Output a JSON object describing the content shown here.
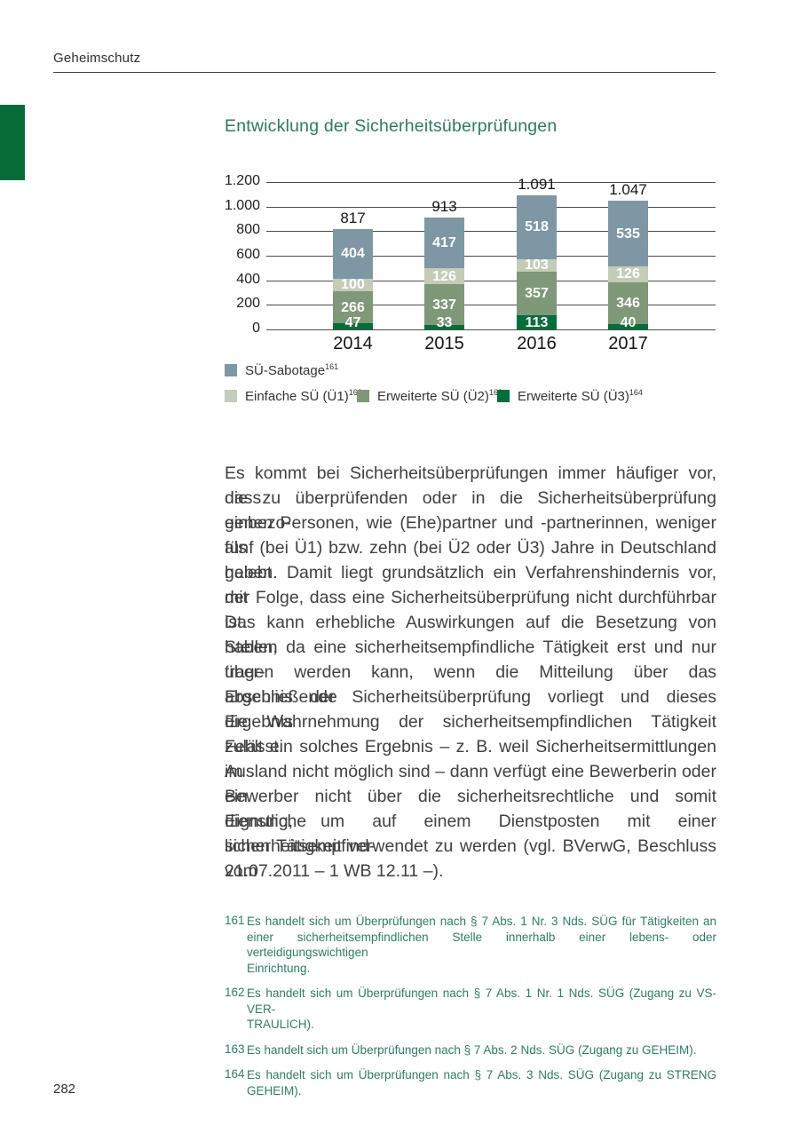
{
  "page": {
    "header": "Geheimschutz",
    "page_number": "282"
  },
  "colors": {
    "margin_block_green": "#056c38",
    "title_green": "#2c7a62",
    "footnote_green": "#2e7d64",
    "bar_blue_gray": "#7e97a5",
    "bar_light_sage": "#c3ccb6",
    "bar_medium_green": "#7e9878",
    "bar_dark_green": "#006f39"
  },
  "chart_data": {
    "type": "bar",
    "stacked": true,
    "title": "Entwicklung der Sicherheitsüberprüfungen",
    "categories": [
      "2014",
      "2015",
      "2016",
      "2017"
    ],
    "series": [
      {
        "name": "SÜ-Sabotage",
        "footnote_ref": "161",
        "color": "#7e97a5",
        "values": [
          404,
          417,
          518,
          535
        ]
      },
      {
        "name": "Einfache SÜ (Ü1)",
        "footnote_ref": "162",
        "color": "#c3ccb6",
        "values": [
          100,
          126,
          103,
          126
        ]
      },
      {
        "name": "Erweiterte SÜ (Ü2)",
        "footnote_ref": "163",
        "color": "#7e9878",
        "values": [
          266,
          337,
          357,
          346
        ]
      },
      {
        "name": "Erweiterte SÜ (Ü3)",
        "footnote_ref": "164",
        "color": "#006f39",
        "values": [
          47,
          33,
          113,
          40
        ]
      }
    ],
    "totals_labels": [
      "817",
      "913",
      "1.091",
      "1.047"
    ],
    "y_ticks": [
      "1.200",
      "1.000",
      "800",
      "600",
      "400",
      "200",
      "0"
    ],
    "ylim": [
      0,
      1200
    ],
    "grid": true,
    "legend_position": "bottom"
  },
  "body": {
    "lines": [
      "Es kommt bei Sicherheitsüberprüfungen immer häufiger vor, dass",
      "die zu überprüfenden oder in die Sicherheitsüberprüfung einbezo-",
      "genen Personen, wie (Ehe)partner und -partnerinnen, weniger als",
      "fünf (bei Ü1) bzw. zehn (bei Ü2 oder Ü3) Jahre in Deutschland gelebt",
      "haben. Damit liegt grundsätzlich ein Verfahrenshindernis vor, mit",
      "der Folge, dass eine Sicherheitsüberprüfung nicht durchführbar ist.",
      "Das kann erhebliche Auswirkungen auf die Besetzung von Stellen",
      "haben, da eine sicherheitsempfindliche Tätigkeit erst und nur über-",
      "tragen werden kann, wenn die Mitteilung über das abschließende",
      "Ergebnis der Sicherheitsüberprüfung vorliegt und dieses Ergebnis",
      "die Wahrnehmung der sicherheitsempfindlichen Tätigkeit zulässt.",
      "Fehlt ein solches Ergebnis – z. B. weil Sicherheitsermittlungen im",
      "Ausland nicht möglich sind – dann verfügt eine Bewerberin oder ein",
      "Bewerber nicht über die sicherheitsrechtliche und somit dienstliche",
      "Eignung, um auf einem Dienstposten mit einer sicherheitsempfind-",
      "lichen Tätigkeit verwendet zu werden (vgl. BVerwG, Beschluss vom",
      "21.07.2011 – 1 WB 12.11 –)."
    ]
  },
  "footnotes": [
    {
      "num": "161",
      "lines": [
        "Es handelt sich um Überprüfungen nach § 7 Abs. 1 Nr. 3 Nds. SÜG für Tätigkeiten an",
        "einer sicherheitsempfindlichen Stelle innerhalb einer lebens- oder verteidigungswichtigen",
        "Einrichtung."
      ]
    },
    {
      "num": "162",
      "lines": [
        "Es handelt sich um Überprüfungen nach § 7 Abs. 1 Nr. 1 Nds. SÜG (Zugang zu VS-VER-",
        "TRAULICH)."
      ]
    },
    {
      "num": "163",
      "lines": [
        "Es handelt sich um Überprüfungen nach § 7 Abs. 2 Nds. SÜG (Zugang zu GEHEIM)."
      ]
    },
    {
      "num": "164",
      "lines": [
        "Es handelt sich um Überprüfungen nach § 7 Abs. 3 Nds. SÜG (Zugang zu STRENG GEHEIM)."
      ]
    }
  ]
}
